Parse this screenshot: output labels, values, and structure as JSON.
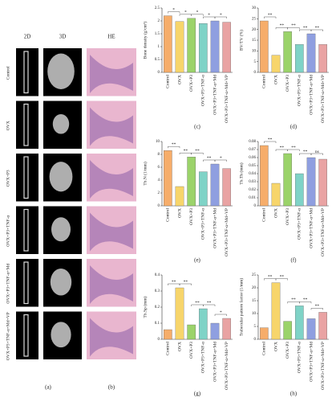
{
  "images": {
    "headers": [
      "2D",
      "3D",
      "HE"
    ],
    "rows": [
      "Control",
      "OVX",
      "OVX+P3",
      "OVX+P3+TNF-α",
      "OVX+P3+TNF-α+Md",
      "OVX+P3+TNF-α+Md+VP"
    ],
    "labels": [
      "(a)",
      "(b)"
    ]
  },
  "chart_data": [
    {
      "type": "bar",
      "label": "(c)",
      "ylabel": "Bone density (g/cm³)",
      "categories": [
        "Control",
        "OVX",
        "OVX+P3",
        "OVX+P3+TNF-α",
        "OVX+P3+TNF-α+Md",
        "OVX+P3+TNF-α+Md+VP"
      ],
      "values": [
        2.2,
        1.98,
        2.1,
        1.9,
        2.0,
        1.95
      ],
      "colors": [
        "#f6ad6a",
        "#f7d56b",
        "#9bd36a",
        "#7fd3c7",
        "#8f9fe0",
        "#e9a3a3"
      ],
      "ylim": [
        0,
        2.5
      ],
      "yticks": [
        0,
        0.5,
        1,
        1.5,
        2,
        2.5
      ],
      "significance": [
        "*",
        "*",
        "*",
        "*",
        "*"
      ]
    },
    {
      "type": "bar",
      "label": "(d)",
      "ylabel": "BV/TV (%)",
      "categories": [
        "Control",
        "OVX",
        "OVX+P3",
        "OVX+P3+TNF-α",
        "OVX+P3+TNF-α+Md",
        "OVX+P3+TNF-α+Md+VP"
      ],
      "values": [
        24,
        8,
        19,
        13,
        18,
        13
      ],
      "colors": [
        "#f6ad6a",
        "#f7d56b",
        "#9bd36a",
        "#7fd3c7",
        "#8f9fe0",
        "#e9a3a3"
      ],
      "ylim": [
        0,
        30
      ],
      "yticks": [
        0,
        5,
        10,
        15,
        20,
        25,
        30
      ],
      "significance": [
        "**",
        "**",
        "**",
        "**",
        "**"
      ]
    },
    {
      "type": "bar",
      "label": "(e)",
      "ylabel": "Tb.N (1/mm)",
      "categories": [
        "Control",
        "OVX",
        "OVX+P3",
        "OVX+P3+TNF-α",
        "OVX+P3+TNF-α+Md",
        "OVX+P3+TNF-α+Md+VP"
      ],
      "values": [
        8.6,
        3.0,
        7.6,
        5.3,
        6.5,
        5.8
      ],
      "colors": [
        "#f6ad6a",
        "#f7d56b",
        "#9bd36a",
        "#7fd3c7",
        "#8f9fe0",
        "#e9a3a3"
      ],
      "ylim": [
        0,
        10
      ],
      "yticks": [
        0,
        2,
        4,
        6,
        8,
        10
      ],
      "significance": [
        "**",
        "**",
        "**",
        "**",
        "*"
      ]
    },
    {
      "type": "bar",
      "label": "(f)",
      "ylabel": "Tb.Th (mm)",
      "categories": [
        "Control",
        "OVX",
        "OVX+P3",
        "OVX+P3+TNF-α",
        "OVX+P3+TNF-α+Md",
        "OVX+P3+TNF-α+Md+VP"
      ],
      "values": [
        0.075,
        0.028,
        0.065,
        0.04,
        0.06,
        0.058
      ],
      "colors": [
        "#f6ad6a",
        "#f7d56b",
        "#9bd36a",
        "#7fd3c7",
        "#8f9fe0",
        "#e9a3a3"
      ],
      "ylim": [
        0,
        0.08
      ],
      "yticks": [
        0,
        0.01,
        0.02,
        0.03,
        0.04,
        0.05,
        0.06,
        0.07,
        0.08
      ],
      "significance": [
        "**",
        "**",
        "**",
        "**",
        "ns"
      ]
    },
    {
      "type": "bar",
      "label": "(g)",
      "ylabel": "Tb.Sp (mm)",
      "categories": [
        "Control",
        "OVX",
        "OVX+P3",
        "OVX+P3+TNF-α",
        "OVX+P3+TNF-α+Md",
        "OVX+P3+TNF-α+Md+VP"
      ],
      "values": [
        0.06,
        0.32,
        0.09,
        0.19,
        0.1,
        0.13
      ],
      "colors": [
        "#f6ad6a",
        "#f7d56b",
        "#9bd36a",
        "#7fd3c7",
        "#8f9fe0",
        "#e9a3a3"
      ],
      "ylim": [
        0,
        0.4
      ],
      "yticks": [
        0,
        0.1,
        0.2,
        0.3,
        0.4
      ],
      "significance": [
        "**",
        "**",
        "**",
        "**",
        "*"
      ]
    },
    {
      "type": "bar",
      "label": "(h)",
      "ylabel": "Trabecular pattern factor (1/mm)",
      "categories": [
        "Control",
        "OVX",
        "OVX+P3",
        "OVX+P3+TNF-α",
        "OVX+P3+TNF-α+Md",
        "OVX+P3+TNF-α+Md+VP"
      ],
      "values": [
        4.5,
        22,
        7,
        13,
        8,
        10.5
      ],
      "colors": [
        "#f6ad6a",
        "#f7d56b",
        "#9bd36a",
        "#7fd3c7",
        "#8f9fe0",
        "#e9a3a3"
      ],
      "ylim": [
        0,
        25
      ],
      "yticks": [
        0,
        5,
        10,
        15,
        20,
        25
      ],
      "significance": [
        "**",
        "**",
        "**",
        "**",
        "**"
      ]
    }
  ]
}
